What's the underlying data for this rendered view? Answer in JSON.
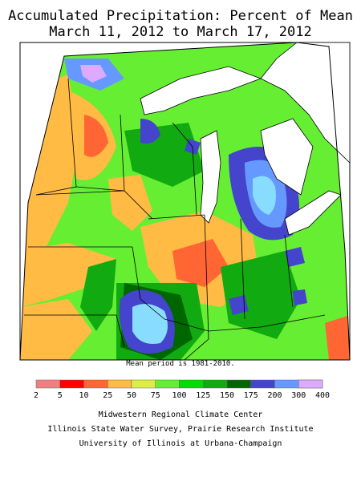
{
  "title": {
    "line1": "Accumulated Precipitation: Percent of Mean",
    "line2": "March 11, 2012 to March 17, 2012"
  },
  "note": "Mean period is 1981-2010.",
  "legend": {
    "breaks": [
      "2",
      "5",
      "10",
      "25",
      "50",
      "75",
      "100",
      "125",
      "150",
      "175",
      "200",
      "300",
      "400"
    ],
    "colors": [
      "#f08080",
      "#ff0000",
      "#ff6633",
      "#ffbb44",
      "#ddee44",
      "#66ee33",
      "#00dd00",
      "#11aa11",
      "#006600",
      "#4444cc",
      "#6699ff",
      "#88ddff",
      "#ddaaff"
    ]
  },
  "credits": {
    "line1": "Midwestern Regional Climate Center",
    "line2": "Illinois State Water Survey, Prairie Research Institute",
    "line3": "University of Illinois at Urbana-Champaign"
  }
}
